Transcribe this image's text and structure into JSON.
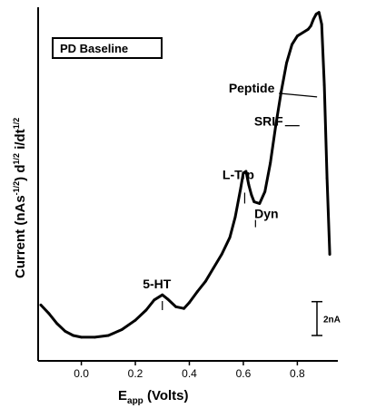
{
  "chart_data": {
    "type": "line",
    "legend": "PD Baseline",
    "xlabel": {
      "main": "E",
      "sub": "app",
      "rest": " (Volts)"
    },
    "ylabel": {
      "main": "Current (nAs",
      "sup1": "-1/2",
      "mid": ") d",
      "sup2": "1/2",
      "mid2": " i/dt",
      "sup3": "1/2"
    },
    "xlim": [
      -0.16,
      0.95
    ],
    "ylim": [
      -1.3,
      19.6
    ],
    "xticks": [
      0.0,
      0.2,
      0.4,
      0.6,
      0.8
    ],
    "xtick_labels": [
      "0.0",
      "0.2",
      "0.4",
      "0.6",
      "0.8"
    ],
    "scale_bar": {
      "label": "2nA",
      "value": 2
    },
    "annotations": [
      {
        "text": "5-HT",
        "x": 0.3,
        "y": 1.7
      },
      {
        "text": "L-Trp",
        "x": 0.605,
        "y": 8.0
      },
      {
        "text": "Dyn",
        "x": 0.645,
        "y": 6.6
      },
      {
        "text": "SRIF",
        "x": 0.808,
        "y": 12.6
      },
      {
        "text": "Peptide",
        "x": 0.873,
        "y": 14.3
      }
    ],
    "series": [
      {
        "x": [
          -0.15,
          -0.12,
          -0.09,
          -0.06,
          -0.03,
          0.0,
          0.05,
          0.1,
          0.15,
          0.2,
          0.24,
          0.27,
          0.3,
          0.32,
          0.35,
          0.38,
          0.4,
          0.43,
          0.46,
          0.49,
          0.52,
          0.55,
          0.57,
          0.59,
          0.6,
          0.61,
          0.62,
          0.63,
          0.64,
          0.66,
          0.68,
          0.7,
          0.72,
          0.74,
          0.76,
          0.78,
          0.8,
          0.82,
          0.84,
          0.85,
          0.86,
          0.87,
          0.88,
          0.89,
          0.9,
          0.91,
          0.92
        ],
        "y": [
          2.0,
          1.5,
          0.9,
          0.45,
          0.2,
          0.1,
          0.1,
          0.2,
          0.55,
          1.1,
          1.7,
          2.3,
          2.6,
          2.35,
          1.9,
          1.8,
          2.15,
          2.8,
          3.4,
          4.2,
          5.0,
          6.0,
          7.2,
          8.9,
          9.8,
          9.9,
          9.1,
          8.5,
          8.1,
          8.0,
          8.7,
          10.4,
          12.6,
          14.6,
          16.3,
          17.4,
          17.9,
          18.1,
          18.3,
          18.5,
          18.9,
          19.2,
          19.3,
          18.6,
          15.0,
          9.5,
          5.0
        ]
      }
    ]
  }
}
